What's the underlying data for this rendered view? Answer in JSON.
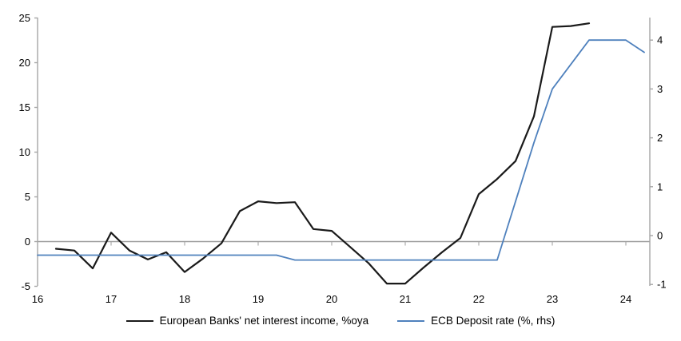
{
  "chart_data": {
    "type": "line",
    "title": "",
    "xlabel": "",
    "ylabel_left": "",
    "ylabel_right": "",
    "x_axis": {
      "tick_labels": [
        "16",
        "17",
        "18",
        "19",
        "20",
        "21",
        "22",
        "23",
        "24"
      ],
      "ticks": [
        16,
        17,
        18,
        19,
        20,
        21,
        22,
        23,
        24
      ],
      "range": [
        16,
        24.33
      ]
    },
    "left_axis": {
      "tick_labels": [
        "25",
        "20",
        "15",
        "10",
        "5",
        "0",
        "-5"
      ],
      "ticks": [
        25,
        20,
        15,
        10,
        5,
        0,
        -5
      ],
      "range": [
        -5,
        25
      ]
    },
    "right_axis": {
      "tick_labels": [
        "4",
        "3",
        "2",
        "1",
        "0",
        "-1"
      ],
      "ticks": [
        4,
        3,
        2,
        1,
        0,
        -1
      ],
      "range": [
        -1.05,
        4.47
      ]
    },
    "grid": "zero-line-only",
    "legend_position": "bottom-center",
    "series": [
      {
        "name": "European Banks' net interest income, %oya",
        "axis": "left",
        "color": "#1a1a1a",
        "line_width": 2.2,
        "x": [
          16.25,
          16.5,
          16.75,
          17,
          17.25,
          17.5,
          17.75,
          18,
          18.25,
          18.5,
          18.75,
          19,
          19.25,
          19.5,
          19.75,
          20,
          20.25,
          20.5,
          20.75,
          21,
          21.25,
          21.5,
          21.75,
          22,
          22.25,
          22.5,
          22.75,
          23,
          23.25,
          23.5
        ],
        "values": [
          -0.8,
          -1,
          -3,
          1,
          -1,
          -2,
          -1.2,
          -3.4,
          -1.9,
          -0.2,
          3.4,
          4.5,
          4.3,
          4.4,
          1.4,
          1.2,
          -0.6,
          -2.4,
          -4.7,
          -4.7,
          -2.9,
          -1.2,
          0.4,
          5.3,
          7,
          9,
          14,
          24,
          24.1,
          24.4
        ]
      },
      {
        "name": "ECB Deposit rate (%, rhs)",
        "axis": "right",
        "color": "#4f81bd",
        "line_width": 1.8,
        "x": [
          16,
          16.25,
          16.5,
          16.75,
          17,
          17.25,
          17.5,
          17.75,
          18,
          18.25,
          18.5,
          18.75,
          19,
          19.25,
          19.5,
          19.75,
          20,
          20.25,
          20.5,
          20.75,
          21,
          21.25,
          21.5,
          21.75,
          22,
          22.25,
          22.5,
          22.75,
          23,
          23.25,
          23.5,
          23.75,
          24,
          24.25
        ],
        "values": [
          -0.4,
          -0.4,
          -0.4,
          -0.4,
          -0.4,
          -0.4,
          -0.4,
          -0.4,
          -0.4,
          -0.4,
          -0.4,
          -0.4,
          -0.4,
          -0.4,
          -0.5,
          -0.5,
          -0.5,
          -0.5,
          -0.5,
          -0.5,
          -0.5,
          -0.5,
          -0.5,
          -0.5,
          -0.5,
          -0.5,
          0.7,
          1.9,
          3,
          3.5,
          4,
          4,
          4,
          3.75
        ]
      }
    ]
  },
  "colors": {
    "background": "#ffffff",
    "axis": "#a6a6a6",
    "zero_line": "#9d9d9d",
    "label": "#000000",
    "nii_line": "#1a1a1a",
    "ecb_line": "#4f81bd"
  }
}
